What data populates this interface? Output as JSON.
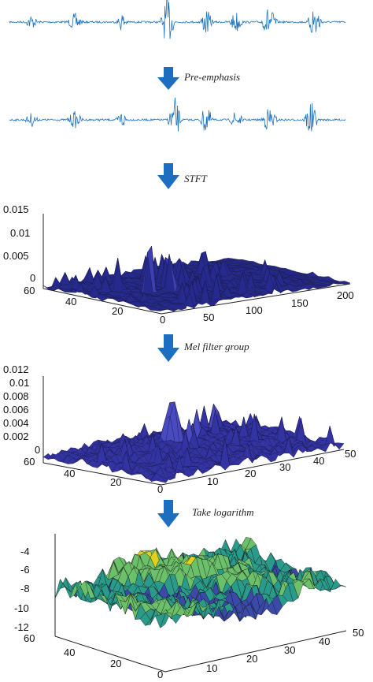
{
  "steps": [
    {
      "label": "Pre-emphasis"
    },
    {
      "label": "STFT"
    },
    {
      "label": "Mel filter group"
    },
    {
      "label": "Take logarithm"
    }
  ],
  "colors": {
    "waveform": "#1e73be",
    "arrow": "#1c6fc0",
    "surface_dark": "#262a8f",
    "surface_mid": "#3f3fb3",
    "log_low": "#3b4aa8",
    "log_mid": "#2a9b8a",
    "log_high": "#e0d020"
  },
  "chart_data": [
    {
      "type": "line",
      "description_role": "raw-waveform",
      "title": "",
      "xlabel": "",
      "ylabel": ""
    },
    {
      "type": "line",
      "description_role": "pre-emphasized-waveform",
      "title": "",
      "xlabel": "",
      "ylabel": ""
    },
    {
      "type": "surface",
      "title": "",
      "z_ticks": [
        "0.015",
        "0.01",
        "0.005",
        "0"
      ],
      "y_ticks": [
        "60",
        "40",
        "20",
        "0"
      ],
      "x_ticks": [
        "50",
        "100",
        "150",
        "200"
      ],
      "zlim": [
        0,
        0.015
      ],
      "xlim": [
        0,
        200
      ],
      "ylim": [
        0,
        60
      ]
    },
    {
      "type": "surface",
      "title": "",
      "z_ticks": [
        "0.012",
        "0.01",
        "0.008",
        "0.006",
        "0.004",
        "0.002",
        "0"
      ],
      "y_ticks": [
        "60",
        "40",
        "20",
        "0"
      ],
      "x_ticks": [
        "10",
        "20",
        "30",
        "40",
        "50"
      ],
      "zlim": [
        0,
        0.012
      ],
      "xlim": [
        0,
        50
      ],
      "ylim": [
        0,
        60
      ]
    },
    {
      "type": "surface",
      "title": "",
      "z_ticks": [
        "-4",
        "-6",
        "-8",
        "-10",
        "-12"
      ],
      "y_ticks": [
        "60",
        "40",
        "20",
        "0"
      ],
      "x_ticks": [
        "10",
        "20",
        "30",
        "40",
        "50"
      ],
      "zlim": [
        -12,
        -4
      ],
      "xlim": [
        0,
        50
      ],
      "ylim": [
        0,
        60
      ]
    }
  ]
}
